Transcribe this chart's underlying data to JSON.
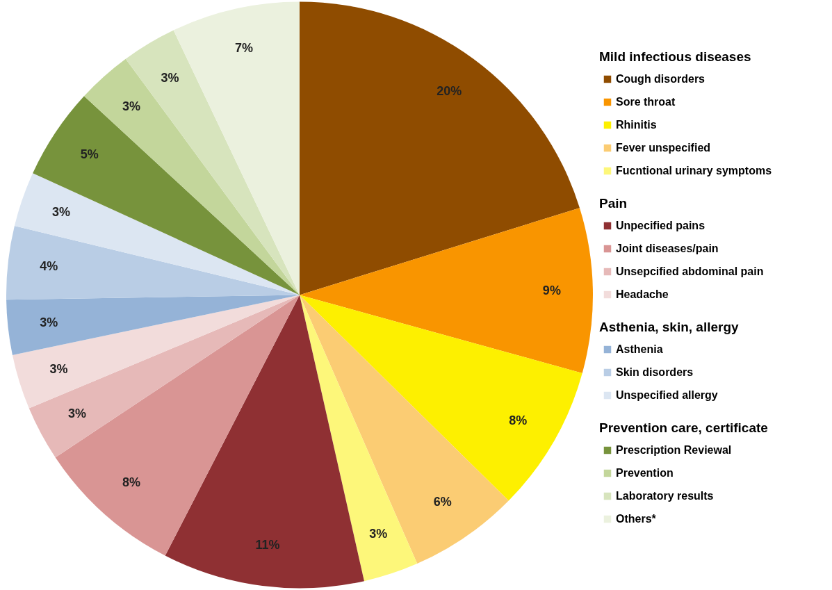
{
  "chart_data": {
    "type": "pie",
    "categories": [
      "Cough disorders",
      "Sore throat",
      "Rhinitis",
      "Fever unspecified",
      "Fucntional urinary symptoms",
      "Unpecified pains",
      "Joint diseases/pain",
      "Unsepcified abdominal pain",
      "Headache",
      "Asthenia",
      "Skin disorders",
      "Unspecified allergy",
      "Prescription Reviewal",
      "Prevention",
      "Laboratory results",
      "Others*"
    ],
    "values": [
      20,
      9,
      8,
      6,
      3,
      11,
      8,
      3,
      3,
      3,
      4,
      3,
      5,
      3,
      3,
      7
    ],
    "value_labels": [
      "20%",
      "9%",
      "8%",
      "6%",
      "3%",
      "11%",
      "8%",
      "3%",
      "3%",
      "3%",
      "4%",
      "3%",
      "5%",
      "3%",
      "3%",
      "7%"
    ],
    "colors": [
      "#8f4c00",
      "#f99500",
      "#fdf000",
      "#fbcc73",
      "#fdf77a",
      "#8f3033",
      "#d99594",
      "#e6b9b8",
      "#f2dcdb",
      "#95b3d7",
      "#b9cde5",
      "#dce6f2",
      "#77933c",
      "#c3d69b",
      "#d7e4bd",
      "#ebf1de"
    ],
    "annotations": [
      "Mild infectious diseases",
      "Pain",
      "Asthenia, skin, allergy",
      "Prevention care, certificate"
    ],
    "legend": "right"
  }
}
